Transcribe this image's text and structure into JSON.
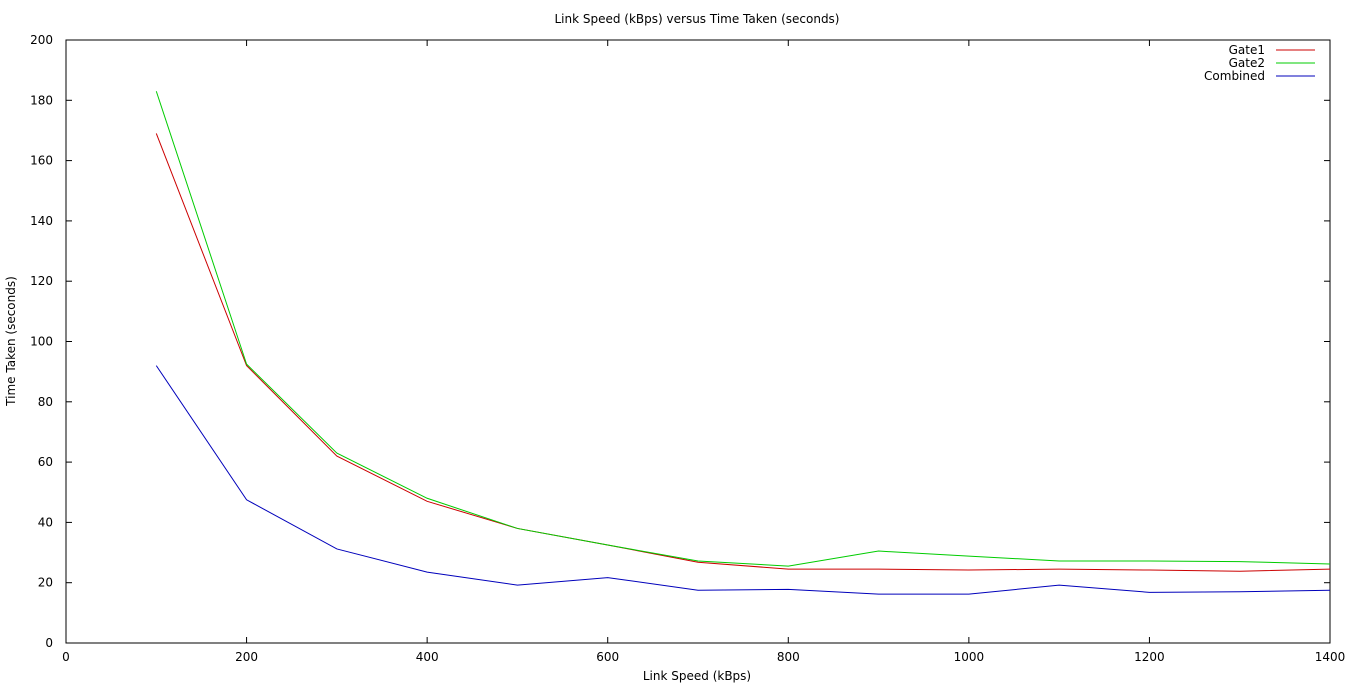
{
  "chart_data": {
    "type": "line",
    "title": "Link Speed (kBps) versus Time Taken (seconds)",
    "xlabel": "Link Speed (kBps)",
    "ylabel": "Time Taken (seconds)",
    "xlim": [
      0,
      1400
    ],
    "ylim": [
      0,
      200
    ],
    "xticks": [
      0,
      200,
      400,
      600,
      800,
      1000,
      1200,
      1400
    ],
    "yticks": [
      0,
      20,
      40,
      60,
      80,
      100,
      120,
      140,
      160,
      180,
      200
    ],
    "grid": false,
    "legend_position": "top-right",
    "x": [
      100,
      200,
      300,
      400,
      500,
      600,
      700,
      800,
      900,
      1000,
      1100,
      1200,
      1300,
      1400
    ],
    "series": [
      {
        "name": "Gate1",
        "color": "#cc0000",
        "values": [
          169,
          92,
          62,
          47,
          38,
          32.5,
          26.8,
          24.5,
          24.5,
          24.2,
          24.5,
          24.2,
          23.8,
          24.5
        ]
      },
      {
        "name": "Gate2",
        "color": "#00cc00",
        "values": [
          183,
          92.5,
          63,
          48,
          38,
          32.5,
          27.2,
          25.5,
          30.5,
          28.8,
          27.2,
          27.2,
          27,
          26.2
        ]
      },
      {
        "name": "Combined",
        "color": "#0000bb",
        "values": [
          92,
          47.5,
          31.2,
          23.5,
          19.2,
          21.7,
          17.5,
          17.8,
          16.2,
          16.2,
          19.2,
          16.8,
          17,
          17.5
        ]
      }
    ]
  }
}
